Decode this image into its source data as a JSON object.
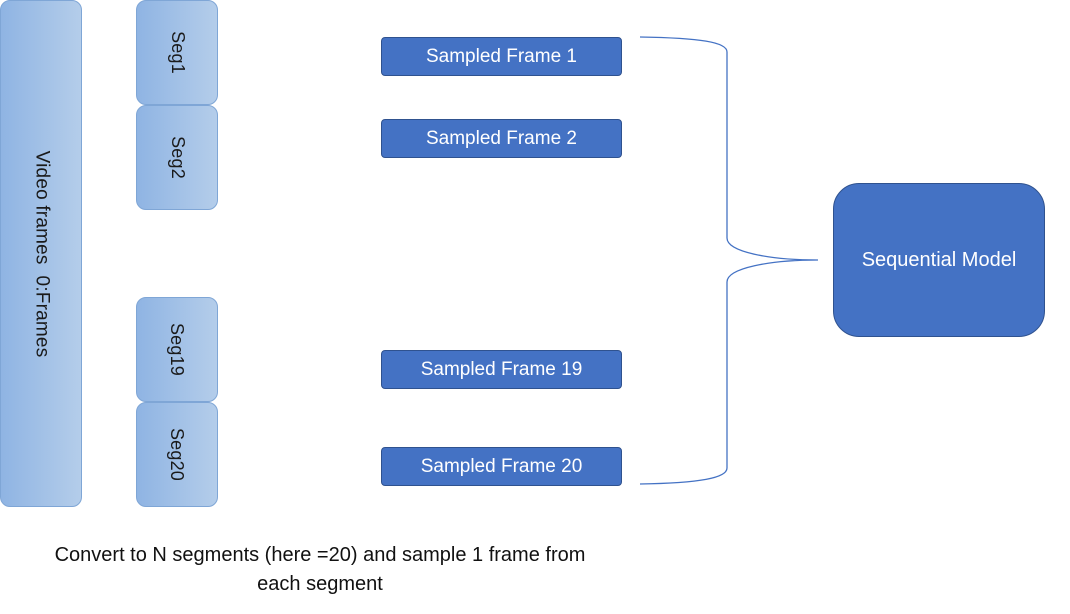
{
  "video_bar": {
    "label": "Video frames  0:Frames"
  },
  "segments": [
    {
      "label": "Seg1"
    },
    {
      "label": "Seg2"
    },
    {
      "label": "Seg19"
    },
    {
      "label": "Seg20"
    }
  ],
  "sampled_frames": [
    {
      "label": "Sampled Frame 1"
    },
    {
      "label": "Sampled Frame 2"
    },
    {
      "label": "Sampled Frame 19"
    },
    {
      "label": "Sampled Frame 20"
    }
  ],
  "model": {
    "label": "Sequential Model"
  },
  "caption": {
    "line1": "Convert to N segments (here =20) and sample 1 frame from",
    "line2": "each segment"
  },
  "colors": {
    "dark_box_fill": "#4472c4",
    "dark_box_border": "#2f528f",
    "light_box_fill": "#9dbde6",
    "brace_stroke": "#4472c4"
  }
}
